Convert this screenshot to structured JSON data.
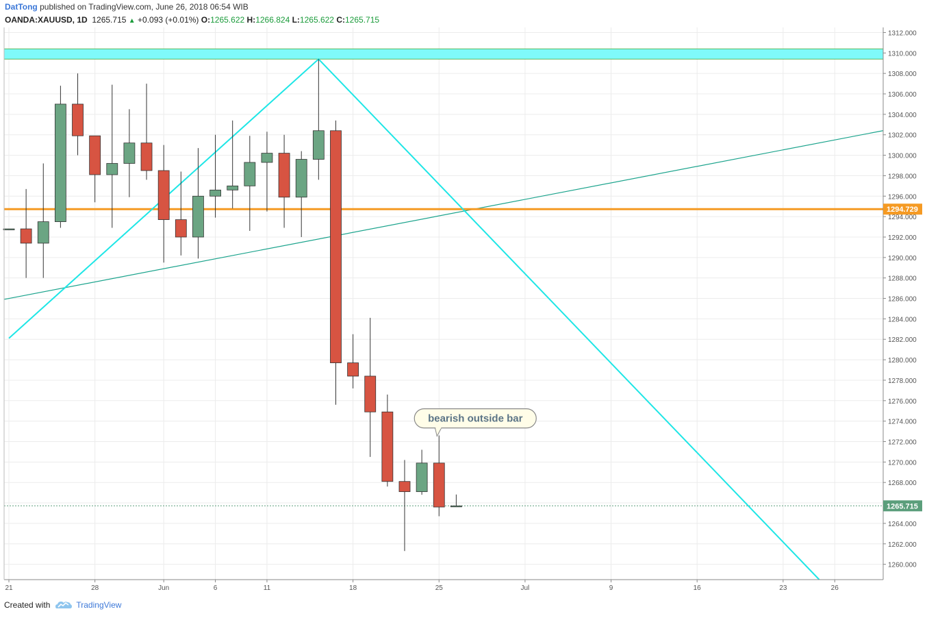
{
  "header": {
    "author": "DatTong",
    "published_text": "published on TradingView.com, June 26, 2018 06:54 WIB",
    "symbol": "OANDA:XAUUSD, 1D",
    "last": "1265.715",
    "change_arrow": "▲",
    "change": "+0.093 (+0.01%)",
    "o_label": "O:",
    "o_value": "1265.622",
    "h_label": "H:",
    "h_value": "1266.824",
    "l_label": "L:",
    "l_value": "1265.622",
    "c_label": "C:",
    "c_value": "1265.715"
  },
  "footer": {
    "created_with": "Created with",
    "brand": "TradingView",
    "logo_icon": "tradingview-cloud-icon"
  },
  "colors": {
    "bull": "#6ba583",
    "bear": "#d75442",
    "candle_outline": "#333333",
    "zone_fill": "#7ffafa",
    "zone_border": "#5cb85c",
    "zigzag": "#1ee6e6",
    "trendline": "#1aa38c",
    "hline": "#f59a23",
    "last_price": "#5b9e7b",
    "grid": "#ececec",
    "callout_fill": "#fffde8"
  },
  "chart_data": {
    "type": "candlestick",
    "symbol": "OANDA:XAUUSD",
    "interval": "1D",
    "ylim": [
      1258.5,
      1312.5
    ],
    "y_ticks": [
      1260,
      1262,
      1264,
      1266,
      1268,
      1270,
      1272,
      1274,
      1276,
      1278,
      1280,
      1282,
      1284,
      1286,
      1288,
      1290,
      1292,
      1294,
      1296,
      1298,
      1300,
      1302,
      1304,
      1306,
      1308,
      1310,
      1312
    ],
    "x_ticks": [
      {
        "label": "21",
        "slot": 0
      },
      {
        "label": "28",
        "slot": 5
      },
      {
        "label": "Jun",
        "slot": 9
      },
      {
        "label": "6",
        "slot": 12
      },
      {
        "label": "11",
        "slot": 15
      },
      {
        "label": "18",
        "slot": 20
      },
      {
        "label": "25",
        "slot": 25
      },
      {
        "label": "Jul",
        "slot": 30
      },
      {
        "label": "9",
        "slot": 35
      },
      {
        "label": "16",
        "slot": 40
      },
      {
        "label": "23",
        "slot": 45
      },
      {
        "label": "26",
        "slot": 48
      }
    ],
    "candles": [
      {
        "date": "2018-05-21",
        "o": 1292.8,
        "h": 1292.8,
        "l": 1292.8,
        "c": 1292.8
      },
      {
        "date": "2018-05-22",
        "o": 1292.8,
        "h": 1296.7,
        "l": 1288.0,
        "c": 1291.4
      },
      {
        "date": "2018-05-23",
        "o": 1291.4,
        "h": 1299.2,
        "l": 1288.0,
        "c": 1293.5
      },
      {
        "date": "2018-05-24",
        "o": 1293.5,
        "h": 1306.8,
        "l": 1292.9,
        "c": 1305.0
      },
      {
        "date": "2018-05-25",
        "o": 1305.0,
        "h": 1308.0,
        "l": 1300.0,
        "c": 1301.9
      },
      {
        "date": "2018-05-28",
        "o": 1301.9,
        "h": 1301.9,
        "l": 1295.4,
        "c": 1298.1
      },
      {
        "date": "2018-05-29",
        "o": 1298.1,
        "h": 1306.9,
        "l": 1292.9,
        "c": 1299.2
      },
      {
        "date": "2018-05-30",
        "o": 1299.2,
        "h": 1304.5,
        "l": 1295.9,
        "c": 1301.2
      },
      {
        "date": "2018-05-31",
        "o": 1301.2,
        "h": 1307.0,
        "l": 1297.6,
        "c": 1298.5
      },
      {
        "date": "2018-06-01",
        "o": 1298.5,
        "h": 1301.0,
        "l": 1289.5,
        "c": 1293.7
      },
      {
        "date": "2018-06-04",
        "o": 1293.7,
        "h": 1298.4,
        "l": 1290.2,
        "c": 1292.0
      },
      {
        "date": "2018-06-05",
        "o": 1292.0,
        "h": 1300.7,
        "l": 1289.9,
        "c": 1296.0
      },
      {
        "date": "2018-06-06",
        "o": 1296.0,
        "h": 1302.0,
        "l": 1293.9,
        "c": 1296.6
      },
      {
        "date": "2018-06-07",
        "o": 1296.6,
        "h": 1303.4,
        "l": 1294.8,
        "c": 1297.0
      },
      {
        "date": "2018-06-08",
        "o": 1297.0,
        "h": 1301.9,
        "l": 1292.6,
        "c": 1299.3
      },
      {
        "date": "2018-06-11",
        "o": 1299.3,
        "h": 1302.3,
        "l": 1294.5,
        "c": 1300.2
      },
      {
        "date": "2018-06-12",
        "o": 1300.2,
        "h": 1302.0,
        "l": 1292.9,
        "c": 1295.9
      },
      {
        "date": "2018-06-13",
        "o": 1295.9,
        "h": 1300.4,
        "l": 1292.0,
        "c": 1299.6
      },
      {
        "date": "2018-06-14",
        "o": 1299.6,
        "h": 1309.4,
        "l": 1297.6,
        "c": 1302.4
      },
      {
        "date": "2018-06-15",
        "o": 1302.4,
        "h": 1303.4,
        "l": 1275.6,
        "c": 1279.7
      },
      {
        "date": "2018-06-18",
        "o": 1279.7,
        "h": 1282.5,
        "l": 1277.2,
        "c": 1278.4
      },
      {
        "date": "2018-06-19",
        "o": 1278.4,
        "h": 1284.1,
        "l": 1270.5,
        "c": 1274.9
      },
      {
        "date": "2018-06-20",
        "o": 1274.9,
        "h": 1276.6,
        "l": 1267.6,
        "c": 1268.1
      },
      {
        "date": "2018-06-21",
        "o": 1268.1,
        "h": 1270.2,
        "l": 1261.3,
        "c": 1267.1
      },
      {
        "date": "2018-06-22",
        "o": 1267.1,
        "h": 1271.2,
        "l": 1266.8,
        "c": 1269.9
      },
      {
        "date": "2018-06-25",
        "o": 1269.9,
        "h": 1272.6,
        "l": 1264.7,
        "c": 1265.6
      },
      {
        "date": "2018-06-26",
        "o": 1265.622,
        "h": 1266.824,
        "l": 1265.622,
        "c": 1265.715
      }
    ],
    "resistance_zone": [
      1309.4,
      1310.4
    ],
    "horizontal_line": {
      "price": 1294.729,
      "label": "1294.729"
    },
    "last_price_line": {
      "price": 1265.715,
      "label": "1265.715"
    },
    "trendline": {
      "from": {
        "slot": -0.3,
        "price": 1285.9
      },
      "to": {
        "slot": 50.8,
        "price": 1302.4
      }
    },
    "zigzag": [
      {
        "slot": 0,
        "price": 1282.1
      },
      {
        "slot": 18,
        "price": 1309.4
      },
      {
        "slot": 47.1,
        "price": 1258.5
      }
    ],
    "annotations": [
      {
        "text": "bearish outside bar",
        "slot": 25,
        "price": 1273.6
      }
    ]
  }
}
